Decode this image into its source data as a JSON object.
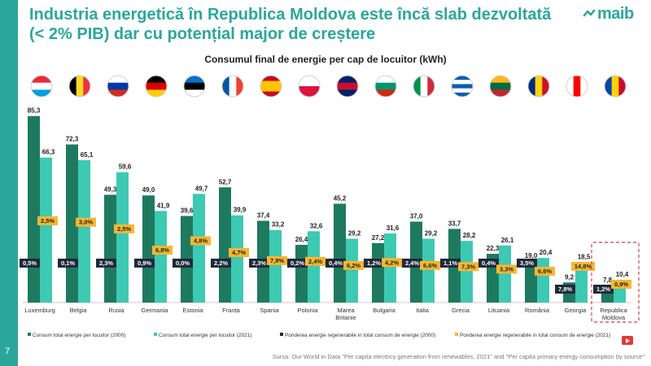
{
  "header": {
    "title_line1": "Industria energetică în Republica Moldova este încă slab dezvoltată",
    "title_line2": "(< 2% PIB) dar cu potențial major de creștere",
    "logo_text": "maib",
    "page_number": "7"
  },
  "source": "Sursa: Our World in Data \"Per capita electricy generation from renewables, 2021\" and \"Per capita primary energy consumption by source\"",
  "colors": {
    "accent": "#2aa79b",
    "series_2000": "#1e7a5e",
    "series_2021": "#3dc9b2",
    "label_2000_bg": "#1f2a3a",
    "label_2021_bg": "#f5b731",
    "highlight_border": "#e05a5a"
  },
  "chart_data": {
    "type": "bar",
    "title": "Consumul final de energie per cap de locuitor (kWh)",
    "categories": [
      "Luxemburg",
      "Belgia",
      "Rusia",
      "Germania",
      "Estonia",
      "Franța",
      "Spania",
      "Polonia",
      "Marea Britanie",
      "Bulgaria",
      "Italia",
      "Grecia",
      "Lituania",
      "România",
      "Georgia",
      "Republica Moldova"
    ],
    "category_lines": [
      [
        "Luxemburg"
      ],
      [
        "Belgia"
      ],
      [
        "Rusia"
      ],
      [
        "Germania"
      ],
      [
        "Estonia"
      ],
      [
        "Franța"
      ],
      [
        "Spania"
      ],
      [
        "Polonia"
      ],
      [
        "Marea",
        "Britanie"
      ],
      [
        "Bulgaria"
      ],
      [
        "Italia"
      ],
      [
        "Grecia"
      ],
      [
        "Lituania"
      ],
      [
        "România"
      ],
      [
        "Georgia"
      ],
      [
        "Republica",
        "Moldova"
      ]
    ],
    "flags": [
      "luxembourg-flag-icon",
      "belgium-flag-icon",
      "russia-flag-icon",
      "germany-flag-icon",
      "estonia-flag-icon",
      "france-flag-icon",
      "spain-flag-icon",
      "poland-flag-icon",
      "uk-flag-icon",
      "bulgaria-flag-icon",
      "italy-flag-icon",
      "greece-flag-icon",
      "lithuania-flag-icon",
      "romania-flag-icon",
      "georgia-flag-icon",
      "moldova-flag-icon"
    ],
    "ylim": [
      0,
      90
    ],
    "highlight_category": "Republica Moldova",
    "series": [
      {
        "name": "Consum total energie per locuitor (2000)",
        "values": [
          85.3,
          72.3,
          49.3,
          49.0,
          39.6,
          52.7,
          37.4,
          26.4,
          45.2,
          27.2,
          37.0,
          33.7,
          22.3,
          19.0,
          9.2,
          7.8
        ],
        "labels": [
          "85,3",
          "72,3",
          "49,3",
          "49,0",
          "39,6",
          "52,7",
          "37,4",
          "26,4",
          "45,2",
          "27,2",
          "37,0",
          "33,7",
          "22,3",
          "19,0",
          "9,2",
          "7,8"
        ]
      },
      {
        "name": "Consum total energie per locuitor (2021)",
        "values": [
          66.3,
          65.1,
          59.6,
          41.9,
          49.7,
          39.9,
          33.2,
          32.6,
          29.2,
          31.6,
          29.2,
          28.2,
          26.1,
          20.4,
          18.5,
          10.4
        ],
        "labels": [
          "66,3",
          "65,1",
          "59,6",
          "41,9",
          "49,7",
          "39,9",
          "33,2",
          "32,6",
          "29,2",
          "31,6",
          "29,2",
          "28,2",
          "26,1",
          "20,4",
          "18,5",
          "10,4"
        ]
      }
    ],
    "share_series": [
      {
        "name": "Ponderea energie regenerabile in total consum de energie (2000)",
        "values": [
          0.5,
          0.1,
          2.3,
          0.9,
          0.0,
          2.2,
          2.3,
          0.2,
          0.4,
          1.2,
          2.4,
          1.1,
          0.4,
          3.5,
          7.8,
          1.2
        ],
        "labels": [
          "0,5%",
          "0,1%",
          "2,3%",
          "0,9%",
          "0,0%",
          "2,2%",
          "2,3%",
          "0,2%",
          "0,4%",
          "1,2%",
          "2,4%",
          "1,1%",
          "0,4%",
          "3,5%",
          "7,8%",
          "1,2%"
        ]
      },
      {
        "name": "Ponderea energie regenerabile in total consum de energie (2021)",
        "values": [
          2.5,
          3.0,
          2.5,
          6.8,
          4.8,
          4.7,
          7.9,
          2.4,
          6.2,
          4.2,
          6.6,
          7.3,
          3.3,
          6.6,
          14.8,
          0.9
        ],
        "labels": [
          "2,5%",
          "3,0%",
          "2,5%",
          "6,8%",
          "4,8%",
          "4,7%",
          "7,9%",
          "2,4%",
          "6,2%",
          "4,2%",
          "6,6%",
          "7,3%",
          "3,3%",
          "6,6%",
          "14,8%",
          "0,9%"
        ]
      }
    ]
  }
}
